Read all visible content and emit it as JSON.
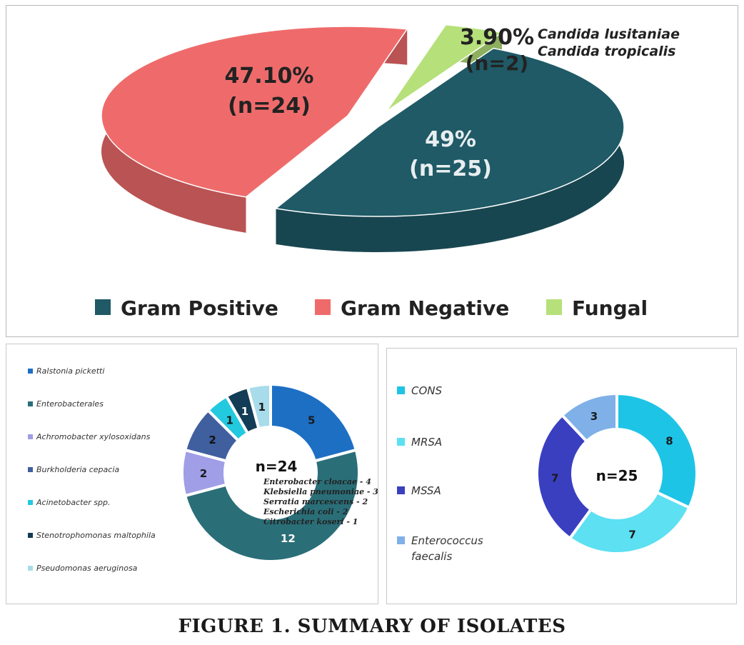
{
  "caption": "FIGURE 1. SUMMARY OF ISOLATES",
  "chart_data": [
    {
      "type": "pie",
      "title": "",
      "categories": [
        "Gram Positive",
        "Gram Negative",
        "Fungal"
      ],
      "values": [
        49,
        47.1,
        3.9
      ],
      "counts": [
        25,
        24,
        2
      ],
      "percent_labels": [
        "49%",
        "47.10%",
        "3.90%"
      ],
      "count_labels": [
        "(n=25)",
        "(n=24)",
        "(n=2)"
      ],
      "colors": [
        "#1f5a66",
        "#ef6b6b",
        "#b6e07a"
      ],
      "annotation": [
        "Candida lusitaniae",
        "Candida tropicalis"
      ],
      "legend_position": "bottom"
    },
    {
      "type": "pie",
      "title": "",
      "center_label": "n=24",
      "categories": [
        "Ralstonia picketti",
        "Enterobacterales",
        "Achromobacter xylosoxidans",
        "Burkholderia cepacia",
        "Acinetobacter spp.",
        "Stenotrophomonas maltophila",
        "Pseudomonas aeruginosa"
      ],
      "values": [
        5,
        12,
        2,
        2,
        1,
        1,
        1
      ],
      "colors": [
        "#1d6fc4",
        "#2a6e78",
        "#9f9ee6",
        "#3f5f9f",
        "#23c9de",
        "#133c56",
        "#a8dcea"
      ],
      "annotation": [
        "Enterobacter cloacae - 4",
        "Klebsiella pneumoniae - 3",
        "Serratia marcescens - 2",
        "Escherichia coli - 2",
        "Citrobacter koseri - 1"
      ],
      "legend_position": "left"
    },
    {
      "type": "pie",
      "title": "",
      "center_label": "n=25",
      "categories": [
        "CONS",
        "MRSA",
        "MSSA",
        "Enterococcus faecalis"
      ],
      "values": [
        8,
        7,
        7,
        3
      ],
      "colors": [
        "#1ec4e6",
        "#5ce0f2",
        "#3a3fc0",
        "#7fb0e8"
      ],
      "legend_position": "left"
    }
  ]
}
